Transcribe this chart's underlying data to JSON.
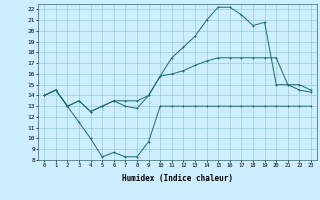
{
  "xlabel": "Humidex (Indice chaleur)",
  "bg_color": "#cceeff",
  "grid_color": "#99cccc",
  "line_color": "#1a6b6b",
  "xlim": [
    -0.5,
    23.5
  ],
  "ylim": [
    8,
    22.5
  ],
  "xticks": [
    0,
    1,
    2,
    3,
    4,
    5,
    6,
    7,
    8,
    9,
    10,
    11,
    12,
    13,
    14,
    15,
    16,
    17,
    18,
    19,
    20,
    21,
    22,
    23
  ],
  "yticks": [
    8,
    9,
    10,
    11,
    12,
    13,
    14,
    15,
    16,
    17,
    18,
    19,
    20,
    21,
    22
  ],
  "line1_x": [
    0,
    1,
    2,
    3,
    4,
    5,
    6,
    7,
    8,
    9,
    10,
    11,
    12,
    13,
    14,
    15,
    16,
    17,
    18,
    19,
    20,
    21,
    22,
    23
  ],
  "line1_y": [
    14.0,
    14.5,
    13.0,
    11.5,
    10.0,
    8.3,
    8.7,
    8.3,
    8.3,
    9.7,
    13.0,
    13.0,
    13.0,
    13.0,
    13.0,
    13.0,
    13.0,
    13.0,
    13.0,
    13.0,
    13.0,
    13.0,
    13.0,
    13.0
  ],
  "line2_x": [
    0,
    1,
    2,
    3,
    4,
    5,
    6,
    7,
    8,
    9,
    10,
    11,
    12,
    13,
    14,
    15,
    16,
    17,
    18,
    19,
    20,
    21,
    22,
    23
  ],
  "line2_y": [
    14.0,
    14.5,
    13.0,
    13.5,
    12.5,
    13.0,
    13.5,
    13.5,
    13.5,
    14.0,
    15.8,
    16.0,
    16.3,
    16.8,
    17.2,
    17.5,
    17.5,
    17.5,
    17.5,
    17.5,
    17.5,
    15.0,
    15.0,
    14.5
  ],
  "line3_x": [
    0,
    1,
    2,
    3,
    4,
    5,
    6,
    7,
    8,
    9,
    10,
    11,
    12,
    13,
    14,
    15,
    16,
    17,
    18,
    19,
    20,
    21,
    22,
    23
  ],
  "line3_y": [
    14.0,
    14.5,
    13.0,
    13.5,
    12.5,
    13.0,
    13.5,
    13.0,
    12.8,
    14.0,
    15.8,
    17.5,
    18.5,
    19.5,
    21.0,
    22.2,
    22.2,
    21.5,
    20.5,
    20.8,
    15.0,
    15.0,
    14.5,
    14.3
  ]
}
